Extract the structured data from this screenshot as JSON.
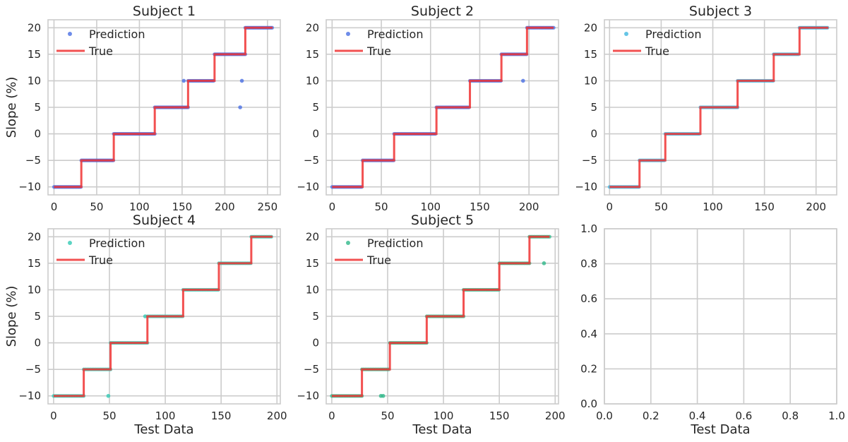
{
  "chart_data": [
    {
      "type": "scatter",
      "title": "Subject 1",
      "xlabel": "",
      "ylabel": "Slope (%)",
      "xlim": [
        -7,
        265
      ],
      "ylim": [
        -11.5,
        21.5
      ],
      "xticks": [
        0,
        50,
        100,
        150,
        200,
        250
      ],
      "yticks": [
        -10,
        -5,
        0,
        5,
        10,
        15,
        20
      ],
      "grid": true,
      "legend": "top-left",
      "prediction_color": "#4a6fe3",
      "true_color": "#f03232",
      "steps": [
        {
          "x": [
            0,
            32
          ],
          "y": -10
        },
        {
          "x": [
            32,
            70
          ],
          "y": -5
        },
        {
          "x": [
            70,
            118
          ],
          "y": 0
        },
        {
          "x": [
            118,
            157
          ],
          "y": 5
        },
        {
          "x": [
            157,
            188
          ],
          "y": 10
        },
        {
          "x": [
            188,
            224
          ],
          "y": 15
        },
        {
          "x": [
            224,
            256
          ],
          "y": 20
        }
      ],
      "outliers": [
        {
          "x": 152,
          "y": 10
        },
        {
          "x": 218,
          "y": 5
        },
        {
          "x": 220,
          "y": 10
        }
      ],
      "series": [
        {
          "name": "Prediction",
          "kind": "points"
        },
        {
          "name": "True",
          "kind": "line"
        }
      ]
    },
    {
      "type": "scatter",
      "title": "Subject 2",
      "xlabel": "",
      "ylabel": "",
      "xlim": [
        -6,
        230
      ],
      "ylim": [
        -11.5,
        21.5
      ],
      "xticks": [
        0,
        50,
        100,
        150,
        200
      ],
      "yticks": [
        -10,
        -5,
        0,
        5,
        10,
        15,
        20
      ],
      "grid": true,
      "legend": "top-left",
      "prediction_color": "#4a6fe3",
      "true_color": "#f03232",
      "steps": [
        {
          "x": [
            0,
            31
          ],
          "y": -10
        },
        {
          "x": [
            31,
            63
          ],
          "y": -5
        },
        {
          "x": [
            63,
            106
          ],
          "y": 0
        },
        {
          "x": [
            106,
            140
          ],
          "y": 5
        },
        {
          "x": [
            140,
            172
          ],
          "y": 10
        },
        {
          "x": [
            172,
            198
          ],
          "y": 15
        },
        {
          "x": [
            198,
            225
          ],
          "y": 20
        }
      ],
      "outliers": [
        {
          "x": 194,
          "y": 10
        }
      ],
      "series": [
        {
          "name": "Prediction",
          "kind": "points"
        },
        {
          "name": "True",
          "kind": "line"
        }
      ]
    },
    {
      "type": "scatter",
      "title": "Subject 3",
      "xlabel": "",
      "ylabel": "",
      "xlim": [
        -5,
        220
      ],
      "ylim": [
        -11.5,
        21.5
      ],
      "xticks": [
        0,
        50,
        100,
        150,
        200
      ],
      "yticks": [
        -10,
        -5,
        0,
        5,
        10,
        15,
        20
      ],
      "grid": true,
      "legend": "top-left",
      "prediction_color": "#3fb7e0",
      "true_color": "#f03232",
      "steps": [
        {
          "x": [
            0,
            29
          ],
          "y": -10
        },
        {
          "x": [
            29,
            54
          ],
          "y": -5
        },
        {
          "x": [
            54,
            88
          ],
          "y": 0
        },
        {
          "x": [
            88,
            124
          ],
          "y": 5
        },
        {
          "x": [
            124,
            159
          ],
          "y": 10
        },
        {
          "x": [
            159,
            184
          ],
          "y": 15
        },
        {
          "x": [
            184,
            212
          ],
          "y": 20
        }
      ],
      "outliers": [],
      "series": [
        {
          "name": "Prediction",
          "kind": "points"
        },
        {
          "name": "True",
          "kind": "line"
        }
      ]
    },
    {
      "type": "scatter",
      "title": "Subject 4",
      "xlabel": "Test Data",
      "ylabel": "Slope (%)",
      "xlim": [
        -5,
        203
      ],
      "ylim": [
        -11.5,
        21.5
      ],
      "xticks": [
        0,
        50,
        100,
        150,
        200
      ],
      "yticks": [
        -10,
        -5,
        0,
        5,
        10,
        15,
        20
      ],
      "grid": true,
      "legend": "top-left",
      "prediction_color": "#33c9b4",
      "true_color": "#f03232",
      "steps": [
        {
          "x": [
            0,
            27
          ],
          "y": -10
        },
        {
          "x": [
            27,
            51
          ],
          "y": -5
        },
        {
          "x": [
            51,
            84
          ],
          "y": 0
        },
        {
          "x": [
            84,
            116
          ],
          "y": 5
        },
        {
          "x": [
            116,
            148
          ],
          "y": 10
        },
        {
          "x": [
            148,
            177
          ],
          "y": 15
        },
        {
          "x": [
            177,
            196
          ],
          "y": 20
        }
      ],
      "outliers": [
        {
          "x": 49,
          "y": -10
        },
        {
          "x": 82,
          "y": 5
        }
      ],
      "series": [
        {
          "name": "Prediction",
          "kind": "points"
        },
        {
          "name": "True",
          "kind": "line"
        }
      ]
    },
    {
      "type": "scatter",
      "title": "Subject 5",
      "xlabel": "Test Data",
      "ylabel": "",
      "xlim": [
        -5,
        203
      ],
      "ylim": [
        -11.5,
        21.5
      ],
      "xticks": [
        0,
        50,
        100,
        150,
        200
      ],
      "yticks": [
        -10,
        -5,
        0,
        5,
        10,
        15,
        20
      ],
      "grid": true,
      "legend": "top-left",
      "prediction_color": "#2fb88a",
      "true_color": "#f03232",
      "steps": [
        {
          "x": [
            0,
            27
          ],
          "y": -10
        },
        {
          "x": [
            27,
            52
          ],
          "y": -5
        },
        {
          "x": [
            52,
            85
          ],
          "y": 0
        },
        {
          "x": [
            85,
            118
          ],
          "y": 5
        },
        {
          "x": [
            118,
            150
          ],
          "y": 10
        },
        {
          "x": [
            150,
            177
          ],
          "y": 15
        },
        {
          "x": [
            177,
            195
          ],
          "y": 20
        }
      ],
      "outliers": [
        {
          "x": 44,
          "y": -10
        },
        {
          "x": 46,
          "y": -10
        },
        {
          "x": 190,
          "y": 15
        }
      ],
      "series": [
        {
          "name": "Prediction",
          "kind": "points"
        },
        {
          "name": "True",
          "kind": "line"
        }
      ]
    },
    {
      "type": "scatter",
      "title": "",
      "xlabel": "Test Data",
      "ylabel": "",
      "xlim": [
        0,
        1
      ],
      "ylim": [
        0,
        1
      ],
      "xticks": [
        0.0,
        0.2,
        0.4,
        0.6,
        0.8,
        1.0
      ],
      "yticks": [
        0.0,
        0.2,
        0.4,
        0.6,
        0.8,
        1.0
      ],
      "xtick_labels": [
        "0.0",
        "0.2",
        "0.4",
        "0.6",
        "0.8",
        "1.0"
      ],
      "ytick_labels": [
        "0.0",
        "0.2",
        "0.4",
        "0.6",
        "0.8",
        "1.0"
      ],
      "grid": true,
      "legend": "none",
      "steps": [],
      "outliers": [],
      "series": []
    }
  ]
}
